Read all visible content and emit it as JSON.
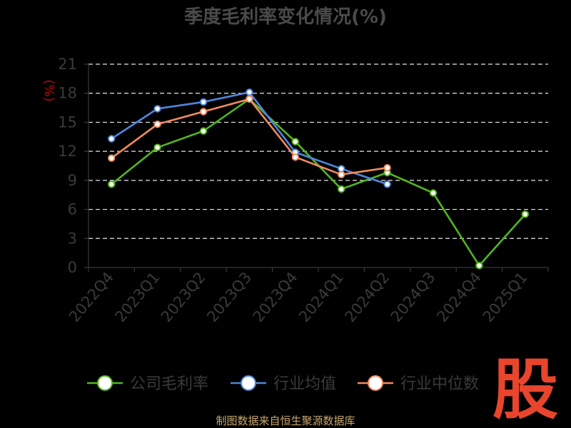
{
  "chart_data": {
    "type": "line",
    "title": "季度毛利率变化情况(%)",
    "ylabel": "(%)",
    "categories": [
      "2022Q4",
      "2023Q1",
      "2023Q2",
      "2023Q3",
      "2023Q4",
      "2024Q1",
      "2024Q2",
      "2024Q3",
      "2024Q4",
      "2025Q1"
    ],
    "ylim": [
      0,
      21
    ],
    "yticks": [
      0,
      3,
      6,
      9,
      12,
      15,
      18,
      21
    ],
    "grid": "horizontal-dashed",
    "legend_position": "bottom",
    "series": [
      {
        "name": "公司毛利率",
        "color": "#52b61e",
        "values": [
          8.6,
          12.4,
          14.1,
          17.4,
          13.0,
          8.1,
          9.8,
          7.7,
          0.2,
          5.5
        ]
      },
      {
        "name": "行业均值",
        "color": "#4e86dc",
        "values": [
          13.3,
          16.4,
          17.1,
          18.1,
          11.9,
          10.2,
          8.6,
          null,
          null,
          null
        ]
      },
      {
        "name": "行业中位数",
        "color": "#f28b5f",
        "values": [
          11.3,
          14.8,
          16.1,
          17.4,
          11.4,
          9.6,
          10.3,
          null,
          null,
          null
        ]
      }
    ]
  },
  "footer": {
    "source": "制图数据来自恒生聚源数据库",
    "logo_text": "股"
  }
}
